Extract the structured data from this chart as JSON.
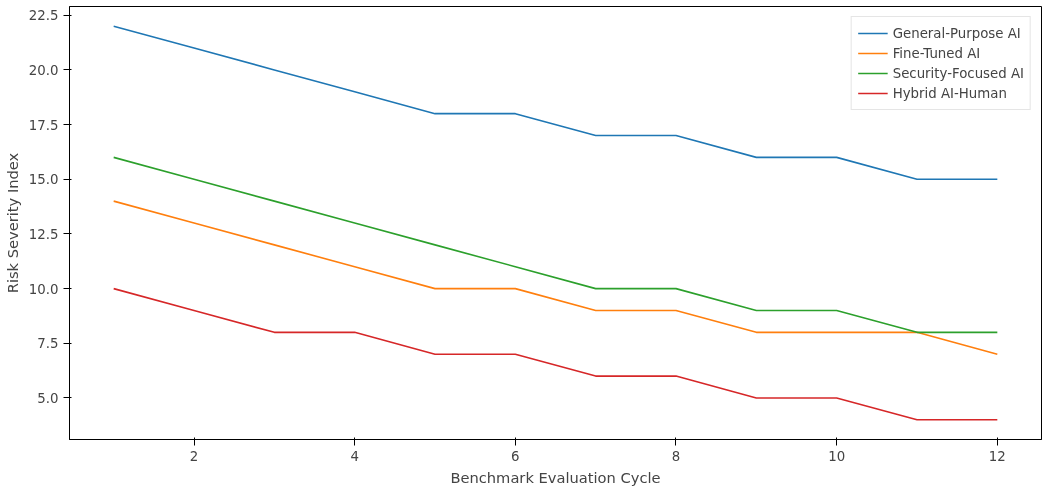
{
  "chart_data": {
    "type": "line",
    "xlabel": "Benchmark Evaluation Cycle",
    "ylabel": "Risk Severity Index",
    "x": [
      1,
      2,
      3,
      4,
      5,
      6,
      7,
      8,
      9,
      10,
      11,
      12
    ],
    "series": [
      {
        "name": "General-Purpose AI",
        "color": "#1f77b4",
        "values": [
          22,
          21,
          20,
          19,
          18,
          18,
          17,
          17,
          16,
          16,
          15,
          15
        ]
      },
      {
        "name": "Fine-Tuned AI",
        "color": "#ff7f0e",
        "values": [
          14,
          13,
          12,
          11,
          10,
          10,
          9,
          9,
          8,
          8,
          8,
          7
        ]
      },
      {
        "name": "Security-Focused AI",
        "color": "#2ca02c",
        "values": [
          16,
          15,
          14,
          13,
          12,
          11,
          10,
          10,
          9,
          9,
          8,
          8
        ]
      },
      {
        "name": "Hybrid AI-Human",
        "color": "#d62728",
        "values": [
          10,
          9,
          8,
          8,
          7,
          7,
          6,
          6,
          5,
          5,
          4,
          4
        ]
      }
    ],
    "xlim": [
      0.45,
      12.55
    ],
    "ylim": [
      3.1,
      22.9
    ],
    "xticks": [
      2,
      4,
      6,
      8,
      10,
      12
    ],
    "yticks": [
      {
        "value": 5,
        "label": "5.0"
      },
      {
        "value": 7.5,
        "label": "7.5"
      },
      {
        "value": 10,
        "label": "10.0"
      },
      {
        "value": 12.5,
        "label": "12.5"
      },
      {
        "value": 15,
        "label": "15.0"
      },
      {
        "value": 17.5,
        "label": "17.5"
      },
      {
        "value": 20,
        "label": "20.0"
      },
      {
        "value": 22.5,
        "label": "22.5"
      }
    ],
    "grid": false,
    "legend": "top right",
    "line_style": "solid"
  }
}
